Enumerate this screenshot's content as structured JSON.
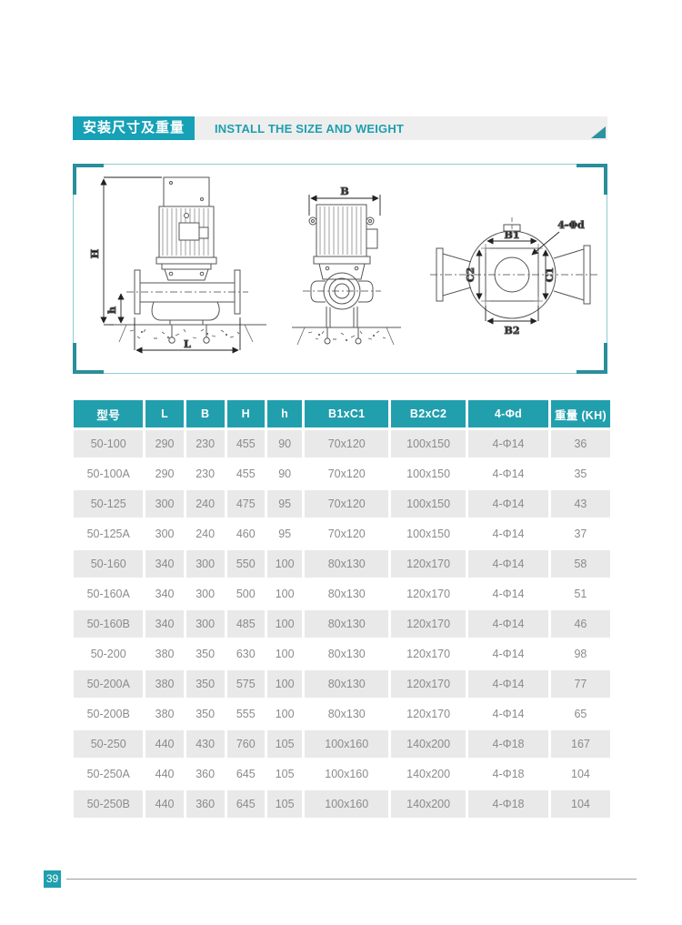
{
  "header": {
    "title_cn": "安装尺寸及重量",
    "title_en": "INSTALL THE SIZE AND WEIGHT"
  },
  "diagram": {
    "labels": {
      "H": "H",
      "h": "h",
      "L": "L",
      "B": "B",
      "B1": "B1",
      "B2": "B2",
      "C1": "C1",
      "C2": "C2",
      "bolt_holes": "4-Φd"
    }
  },
  "table": {
    "headers": [
      "型号",
      "L",
      "B",
      "H",
      "h",
      "B1xC1",
      "B2xC2",
      "4-Φd",
      "重量 (KH)"
    ],
    "rows": [
      [
        "50-100",
        "290",
        "230",
        "455",
        "90",
        "70x120",
        "100x150",
        "4-Φ14",
        "36"
      ],
      [
        "50-100A",
        "290",
        "230",
        "455",
        "90",
        "70x120",
        "100x150",
        "4-Φ14",
        "35"
      ],
      [
        "50-125",
        "300",
        "240",
        "475",
        "95",
        "70x120",
        "100x150",
        "4-Φ14",
        "43"
      ],
      [
        "50-125A",
        "300",
        "240",
        "460",
        "95",
        "70x120",
        "100x150",
        "4-Φ14",
        "37"
      ],
      [
        "50-160",
        "340",
        "300",
        "550",
        "100",
        "80x130",
        "120x170",
        "4-Φ14",
        "58"
      ],
      [
        "50-160A",
        "340",
        "300",
        "500",
        "100",
        "80x130",
        "120x170",
        "4-Φ14",
        "51"
      ],
      [
        "50-160B",
        "340",
        "300",
        "485",
        "100",
        "80x130",
        "120x170",
        "4-Φ14",
        "46"
      ],
      [
        "50-200",
        "380",
        "350",
        "630",
        "100",
        "80x130",
        "120x170",
        "4-Φ14",
        "98"
      ],
      [
        "50-200A",
        "380",
        "350",
        "575",
        "100",
        "80x130",
        "120x170",
        "4-Φ14",
        "77"
      ],
      [
        "50-200B",
        "380",
        "350",
        "555",
        "100",
        "80x130",
        "120x170",
        "4-Φ14",
        "65"
      ],
      [
        "50-250",
        "440",
        "430",
        "760",
        "105",
        "100x160",
        "140x200",
        "4-Φ18",
        "167"
      ],
      [
        "50-250A",
        "440",
        "360",
        "645",
        "105",
        "100x160",
        "140x200",
        "4-Φ18",
        "104"
      ],
      [
        "50-250B",
        "440",
        "360",
        "645",
        "105",
        "100x160",
        "140x200",
        "4-Φ18",
        "104"
      ]
    ]
  },
  "footer": {
    "page_number": "39"
  },
  "colors": {
    "title_teal": "#16a1b6",
    "table_header_teal": "#219fad",
    "accent_teal": "#2a8f9b",
    "row_gray": "#e9e9e9",
    "cell_text": "#8b8b8b"
  }
}
